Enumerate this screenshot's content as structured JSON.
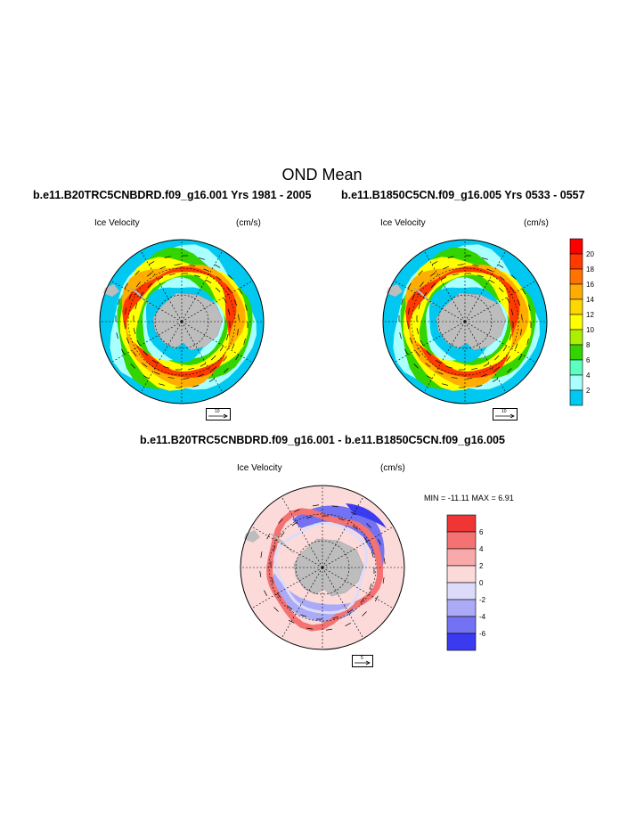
{
  "title": "OND Mean",
  "panels": [
    {
      "case": "b.e11.B20TRC5CNBDRD.f09_g16.001  Yrs 1981 - 2005",
      "label": "Ice Velocity",
      "units": "(cm/s)",
      "ref_vector": "10"
    },
    {
      "case": "b.e11.B1850C5CN.f09_g16.005  Yrs 0533 - 0557",
      "label": "Ice Velocity",
      "units": "(cm/s)",
      "ref_vector": "10"
    }
  ],
  "diff": {
    "case": "b.e11.B20TRC5CNBDRD.f09_g16.001 - b.e11.B1850C5CN.f09_g16.005",
    "label": "Ice Velocity",
    "units": "(cm/s)",
    "minmax": "MIN = -11.11 MAX =   6.91",
    "ref_vector": "5"
  },
  "chart_data": [
    {
      "type": "heatmap",
      "title": "Ice Velocity",
      "legend": {
        "ticks": [
          "20",
          "18",
          "16",
          "14",
          "12",
          "10",
          "8",
          "6",
          "4",
          "2"
        ],
        "colors": [
          "#ff0000",
          "#ff3a00",
          "#ff7300",
          "#ffad00",
          "#ffd700",
          "#ffff00",
          "#aaf000",
          "#33d400",
          "#5cffbf",
          "#aaffff",
          "#00c8f0"
        ]
      }
    },
    {
      "type": "heatmap",
      "title": "Ice Velocity",
      "legend": {
        "ticks": [
          "6",
          "4",
          "2",
          "0",
          "-2",
          "-4",
          "-6"
        ],
        "colors": [
          "#f03535",
          "#f47272",
          "#f8aaaa",
          "#fcdada",
          "#dcdcfa",
          "#aaaaf6",
          "#7272f2",
          "#3a3af0"
        ]
      }
    }
  ]
}
